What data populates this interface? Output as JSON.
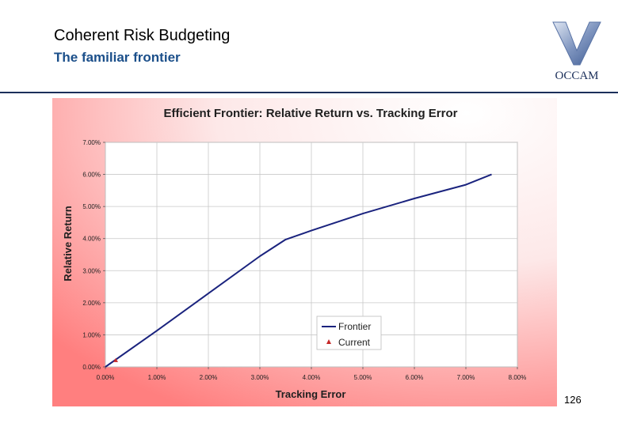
{
  "slide": {
    "title": "Coherent Risk Budgeting",
    "subtitle": "The familiar frontier",
    "page_number": "126",
    "logo_text": "OCCAM"
  },
  "colors": {
    "frontier": "#1a237e",
    "current": "#c62828",
    "subtitle": "#1b4f8a",
    "background_edge": "#ff8080"
  },
  "chart_data": {
    "type": "line",
    "title": "Efficient Frontier: Relative Return vs. Tracking Error",
    "xlabel": "Tracking Error",
    "ylabel": "Relative Return",
    "xlim": [
      0,
      0.08
    ],
    "ylim": [
      0,
      0.07
    ],
    "x_ticks": [
      "0.00%",
      "1.00%",
      "2.00%",
      "3.00%",
      "4.00%",
      "5.00%",
      "6.00%",
      "7.00%",
      "8.00%"
    ],
    "y_ticks": [
      "0.00%",
      "1.00%",
      "2.00%",
      "3.00%",
      "4.00%",
      "5.00%",
      "6.00%",
      "7.00%"
    ],
    "grid": true,
    "legend_position": "bottom-right",
    "series": [
      {
        "name": "Frontier",
        "kind": "line",
        "x": [
          0.0,
          0.01,
          0.02,
          0.03,
          0.035,
          0.04,
          0.05,
          0.06,
          0.07,
          0.075
        ],
        "y": [
          0.0,
          0.0113,
          0.0229,
          0.0345,
          0.0397,
          0.0425,
          0.0478,
          0.0525,
          0.0568,
          0.06
        ]
      },
      {
        "name": "Current",
        "kind": "scatter",
        "x": [
          0.002
        ],
        "y": [
          0.002
        ]
      }
    ]
  }
}
